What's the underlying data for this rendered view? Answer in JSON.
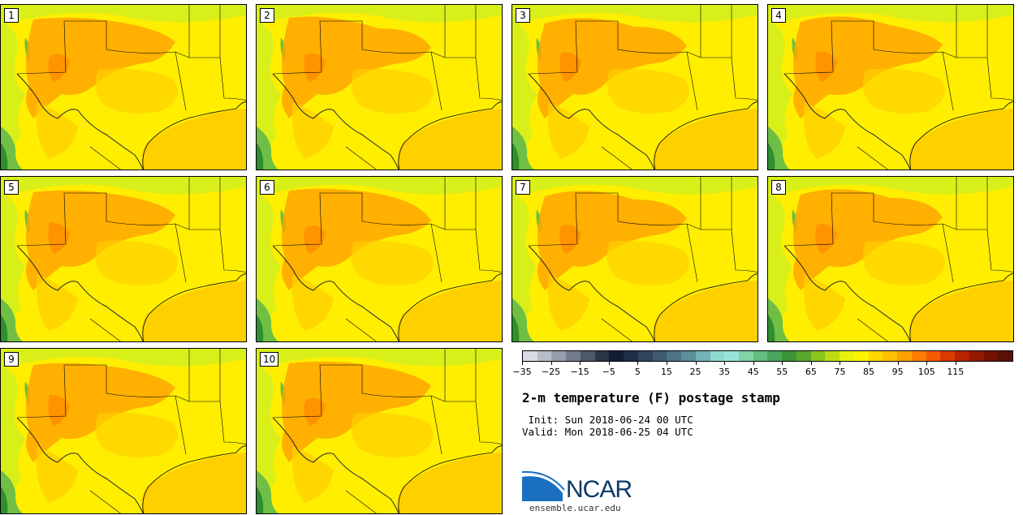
{
  "members": [
    {
      "label": "1"
    },
    {
      "label": "2"
    },
    {
      "label": "3"
    },
    {
      "label": "4"
    },
    {
      "label": "5"
    },
    {
      "label": "6"
    },
    {
      "label": "7"
    },
    {
      "label": "8"
    },
    {
      "label": "9"
    },
    {
      "label": "10"
    }
  ],
  "colorbar": {
    "colors": [
      "#d7dbe3",
      "#b7bdc8",
      "#959eac",
      "#727c8d",
      "#4d5868",
      "#2a3546",
      "#101d33",
      "#1f2f45",
      "#31475c",
      "#3e5b70",
      "#4e7383",
      "#5d8f98",
      "#74b3b3",
      "#8fd8cf",
      "#95e6d6",
      "#7fd3a6",
      "#62bd80",
      "#4aa85c",
      "#3f9437",
      "#5aa82a",
      "#8bc31f",
      "#bddc15",
      "#e8f20c",
      "#fff200",
      "#ffd700",
      "#ffc000",
      "#ffa200",
      "#ff7d00",
      "#f55a00",
      "#d83a00",
      "#b62400",
      "#951800",
      "#731200",
      "#5a1005"
    ],
    "tick_labels": [
      "-35",
      "-25",
      "-15",
      "-5",
      "5",
      "15",
      "25",
      "35",
      "45",
      "55",
      "65",
      "75",
      "85",
      "95",
      "105",
      "115"
    ]
  },
  "title": "2-m temperature (F) postage stamp",
  "init_label": " Init: Sun 2018-06-24 00 UTC",
  "valid_label": "Valid: Mon 2018-06-25 04 UTC",
  "logo": {
    "text": "NCAR",
    "name": "ncar-logo"
  },
  "site": "ensemble.ucar.edu",
  "palette": {
    "yellow": "#ffee00",
    "gold": "#ffd000",
    "orange": "#ffa500",
    "lime": "#d9ef1a",
    "green": "#6fbf45",
    "dark_green": "#2f8f2f"
  }
}
